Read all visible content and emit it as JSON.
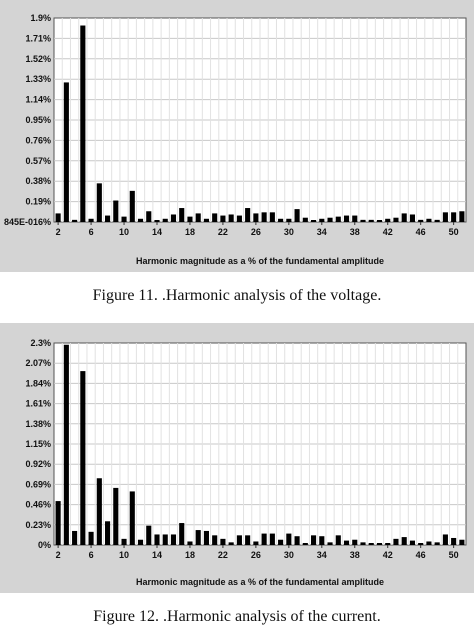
{
  "chart_data": [
    {
      "type": "bar",
      "xlabel": "Harmonic magnitude as a % of the fundamental amplitude",
      "yticks": [
        "1.9%",
        "1.71%",
        "1.52%",
        "1.33%",
        "1.14%",
        "0.95%",
        "0.76%",
        "0.57%",
        "0.38%",
        "0.19%",
        "845E-016%"
      ],
      "xticks": [
        "2",
        "6",
        "10",
        "14",
        "18",
        "22",
        "26",
        "30",
        "34",
        "38",
        "42",
        "46",
        "50"
      ],
      "ylim": [
        0,
        1.9
      ],
      "grid": true,
      "categories": [
        2,
        3,
        4,
        5,
        6,
        7,
        8,
        9,
        10,
        11,
        12,
        13,
        14,
        15,
        16,
        17,
        18,
        19,
        20,
        21,
        22,
        23,
        24,
        25,
        26,
        27,
        28,
        29,
        30,
        31,
        32,
        33,
        34,
        35,
        36,
        37,
        38,
        39,
        40,
        41,
        42,
        43,
        44,
        45,
        46,
        47,
        48,
        49,
        50,
        51
      ],
      "values": [
        0.08,
        1.3,
        0.02,
        1.83,
        0.03,
        0.36,
        0.06,
        0.2,
        0.05,
        0.29,
        0.03,
        0.1,
        0.01,
        0.03,
        0.07,
        0.13,
        0.05,
        0.08,
        0.03,
        0.08,
        0.06,
        0.07,
        0.06,
        0.13,
        0.08,
        0.09,
        0.09,
        0.03,
        0.03,
        0.12,
        0.04,
        0.01,
        0.03,
        0.04,
        0.05,
        0.06,
        0.06,
        0.02,
        0.02,
        0.01,
        0.03,
        0.04,
        0.08,
        0.07,
        0.02,
        0.03,
        0.02,
        0.09,
        0.09,
        0.1
      ]
    },
    {
      "type": "bar",
      "xlabel": "Harmonic magnitude as a % of the fundamental amplitude",
      "yticks": [
        "2.3%",
        "2.07%",
        "1.84%",
        "1.61%",
        "1.38%",
        "1.15%",
        "0.92%",
        "0.69%",
        "0.46%",
        "0.23%",
        "0%"
      ],
      "xticks": [
        "2",
        "6",
        "10",
        "14",
        "18",
        "22",
        "26",
        "30",
        "34",
        "38",
        "42",
        "46",
        "50"
      ],
      "ylim": [
        0,
        2.3
      ],
      "grid": true,
      "categories": [
        2,
        3,
        4,
        5,
        6,
        7,
        8,
        9,
        10,
        11,
        12,
        13,
        14,
        15,
        16,
        17,
        18,
        19,
        20,
        21,
        22,
        23,
        24,
        25,
        26,
        27,
        28,
        29,
        30,
        31,
        32,
        33,
        34,
        35,
        36,
        37,
        38,
        39,
        40,
        41,
        42,
        43,
        44,
        45,
        46,
        47,
        48,
        49,
        50,
        51
      ],
      "values": [
        0.5,
        2.28,
        0.16,
        1.98,
        0.15,
        0.76,
        0.27,
        0.65,
        0.07,
        0.61,
        0.06,
        0.22,
        0.12,
        0.12,
        0.12,
        0.25,
        0.04,
        0.17,
        0.16,
        0.11,
        0.07,
        0.03,
        0.11,
        0.11,
        0.04,
        0.13,
        0.13,
        0.06,
        0.13,
        0.1,
        0.02,
        0.11,
        0.1,
        0.03,
        0.11,
        0.05,
        0.06,
        0.03,
        0.02,
        0.01,
        0.02,
        0.07,
        0.09,
        0.05,
        0.01,
        0.04,
        0.03,
        0.12,
        0.08,
        0.06
      ]
    }
  ],
  "captions": {
    "fig11": "Figure 11.  .Harmonic analysis of the voltage.",
    "fig12": "Figure 12.  .Harmonic analysis of the current."
  }
}
